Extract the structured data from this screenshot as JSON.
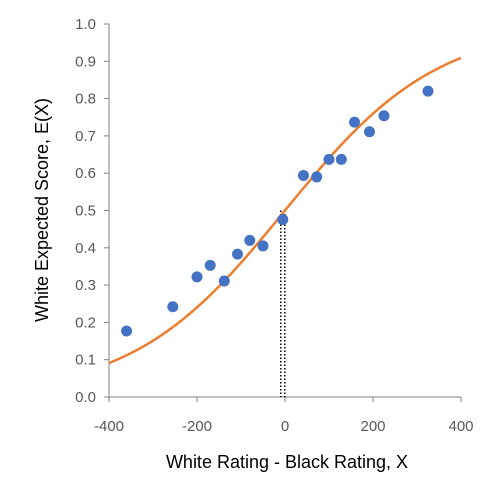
{
  "chart_data": {
    "type": "scatter",
    "title": "",
    "xlabel": "White Rating - Black Rating, X",
    "ylabel": "White Expected Score, E(X)",
    "xlim": [
      -400,
      400
    ],
    "ylim": [
      0.0,
      1.0
    ],
    "x_ticks": [
      "-400",
      "-200",
      "0",
      "200",
      "400"
    ],
    "y_ticks": [
      "0.0",
      "0.1",
      "0.2",
      "0.3",
      "0.4",
      "0.5",
      "0.6",
      "0.7",
      "0.8",
      "0.9",
      "1.0"
    ],
    "grid": false,
    "legend": "none",
    "series": [
      {
        "type": "scatter",
        "color": "#4472C4",
        "points": [
          {
            "x": -360,
            "y": 0.177
          },
          {
            "x": -255,
            "y": 0.242
          },
          {
            "x": -200,
            "y": 0.322
          },
          {
            "x": -170,
            "y": 0.353
          },
          {
            "x": -138,
            "y": 0.311
          },
          {
            "x": -108,
            "y": 0.383
          },
          {
            "x": -80,
            "y": 0.42
          },
          {
            "x": -50,
            "y": 0.405
          },
          {
            "x": -5,
            "y": 0.476
          },
          {
            "x": 42,
            "y": 0.594
          },
          {
            "x": 72,
            "y": 0.59
          },
          {
            "x": 100,
            "y": 0.637
          },
          {
            "x": 128,
            "y": 0.637
          },
          {
            "x": 158,
            "y": 0.737
          },
          {
            "x": 192,
            "y": 0.711
          },
          {
            "x": 225,
            "y": 0.754
          },
          {
            "x": 325,
            "y": 0.82
          }
        ]
      },
      {
        "type": "line",
        "color": "#ED7D31",
        "function": "logistic",
        "scale": 400,
        "x_range": [
          -400,
          400
        ]
      }
    ],
    "reference_line": {
      "x": -5,
      "y_range": [
        0.0,
        0.5
      ],
      "style": "dotted",
      "color": "#000000"
    }
  }
}
